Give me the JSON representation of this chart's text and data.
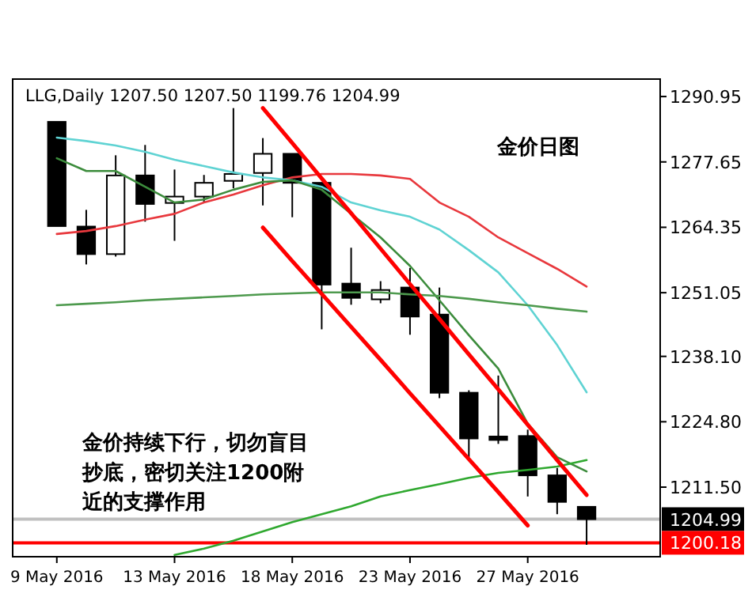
{
  "chart_data": {
    "type": "candlestick",
    "categories": [
      "9 May 2016",
      null,
      null,
      null,
      "13 May 2016",
      null,
      null,
      null,
      "18 May 2016",
      null,
      null,
      null,
      "23 May 2016",
      null,
      null,
      null,
      "27 May 2016",
      null,
      null
    ],
    "ohlc": [
      [
        1285.8,
        1285.8,
        1264.6,
        1264.6
      ],
      [
        1264.5,
        1267.9,
        1256.8,
        1258.9
      ],
      [
        1258.9,
        1279.0,
        1258.4,
        1274.9
      ],
      [
        1274.9,
        1281.1,
        1265.5,
        1269.1
      ],
      [
        1269.3,
        1276.1,
        1261.6,
        1270.6
      ],
      [
        1270.6,
        1275.0,
        1269.3,
        1273.4
      ],
      [
        1273.8,
        1288.6,
        1272.3,
        1275.2
      ],
      [
        1275.4,
        1282.5,
        1268.8,
        1279.3
      ],
      [
        1279.3,
        1279.3,
        1266.4,
        1273.4
      ],
      [
        1273.4,
        1273.4,
        1243.6,
        1252.7
      ],
      [
        1252.9,
        1260.2,
        1248.6,
        1250.0
      ],
      [
        1249.7,
        1253.4,
        1248.9,
        1251.6
      ],
      [
        1252.1,
        1256.1,
        1242.5,
        1246.2
      ],
      [
        1246.6,
        1252.1,
        1229.6,
        1230.7
      ],
      [
        1230.7,
        1231.2,
        1217.6,
        1221.4
      ],
      [
        1221.8,
        1234.2,
        1220.3,
        1221.1
      ],
      [
        1221.9,
        1223.2,
        1209.6,
        1213.9
      ],
      [
        1213.9,
        1215.4,
        1206.0,
        1208.5
      ],
      [
        1207.5,
        1207.5,
        1199.76,
        1204.99
      ]
    ],
    "series": [
      {
        "type": "line",
        "color": "#e8383d",
        "values": [
          1263.0,
          1263.6,
          1264.6,
          1265.9,
          1267.1,
          1269.4,
          1271.0,
          1272.9,
          1274.5,
          1275.2,
          1275.2,
          1274.9,
          1274.2,
          1269.4,
          1266.5,
          1262.3,
          1259.1,
          1255.9,
          1252.3
        ]
      },
      {
        "type": "line",
        "color": "#5fd3d3",
        "values": [
          1282.6,
          1281.9,
          1281.0,
          1279.7,
          1278.1,
          1276.8,
          1275.5,
          1274.5,
          1273.9,
          1272.6,
          1269.4,
          1267.8,
          1266.5,
          1263.9,
          1259.7,
          1255.2,
          1248.5,
          1240.4,
          1230.8
        ]
      },
      {
        "type": "line",
        "color": "#3c8c3c",
        "values": [
          1278.4,
          1275.8,
          1275.8,
          1272.6,
          1269.4,
          1270.0,
          1272.0,
          1273.6,
          1273.9,
          1272.0,
          1267.1,
          1262.3,
          1256.5,
          1249.5,
          1242.4,
          1235.6,
          1224.4,
          1217.6,
          1214.7
        ]
      },
      {
        "type": "line",
        "color": "#4e9a4e",
        "values": [
          1248.5,
          1248.8,
          1249.1,
          1249.5,
          1249.8,
          1250.1,
          1250.4,
          1250.7,
          1250.9,
          1251.1,
          1251.1,
          1251.1,
          1250.7,
          1250.4,
          1249.8,
          1249.1,
          1248.5,
          1247.8,
          1247.2
        ]
      },
      {
        "type": "line",
        "color": "#2fa82f",
        "values": [
          null,
          null,
          null,
          null,
          1197.7,
          1199.0,
          1200.6,
          1202.5,
          1204.4,
          1206.0,
          1207.6,
          1209.6,
          1210.9,
          1212.1,
          1213.4,
          1214.4,
          1215.0,
          1215.7,
          1217.0
        ]
      },
      {
        "type": "line",
        "color": "#ff0000",
        "values": [
          null,
          null,
          null,
          null,
          null,
          null,
          null,
          1288.6,
          1281.5,
          1274.3,
          1267.2,
          1260.0,
          1252.8,
          1245.7,
          1238.5,
          1231.4,
          1224.2,
          1217.0,
          1209.9
        ]
      },
      {
        "type": "line",
        "color": "#ff0000",
        "values": [
          null,
          null,
          null,
          null,
          null,
          null,
          null,
          1264.3,
          1257.5,
          1250.8,
          1244.1,
          1237.4,
          1230.6,
          1223.9,
          1217.2,
          1210.5,
          1203.7,
          null,
          null
        ]
      }
    ],
    "ylim": [
      1197.35,
      1294.5
    ],
    "yticks": [
      {
        "value": 1290.95,
        "label": "1290.95"
      },
      {
        "value": 1277.65,
        "label": "1277.65"
      },
      {
        "value": 1264.35,
        "label": "1264.35"
      },
      {
        "value": 1251.05,
        "label": "1251.05"
      },
      {
        "value": 1238.1,
        "label": "1238.10"
      },
      {
        "value": 1224.8,
        "label": "1224.80"
      },
      {
        "value": 1211.5,
        "label": "1211.50"
      }
    ],
    "ref_lines": [
      {
        "axis": "y",
        "value": 1204.99,
        "label": "1204.99",
        "color": "#c0c0c0"
      },
      {
        "axis": "y",
        "value": 1200.18,
        "label": "1200.18",
        "color": "#ff0000"
      }
    ],
    "annotations": [
      "LLG,Daily  1207.50 1207.50 1199.76 1204.99",
      "金价日图",
      "金价持续下行，切勿盲目抄底，密切关注1200附近的支撑作用"
    ],
    "grid": false
  }
}
